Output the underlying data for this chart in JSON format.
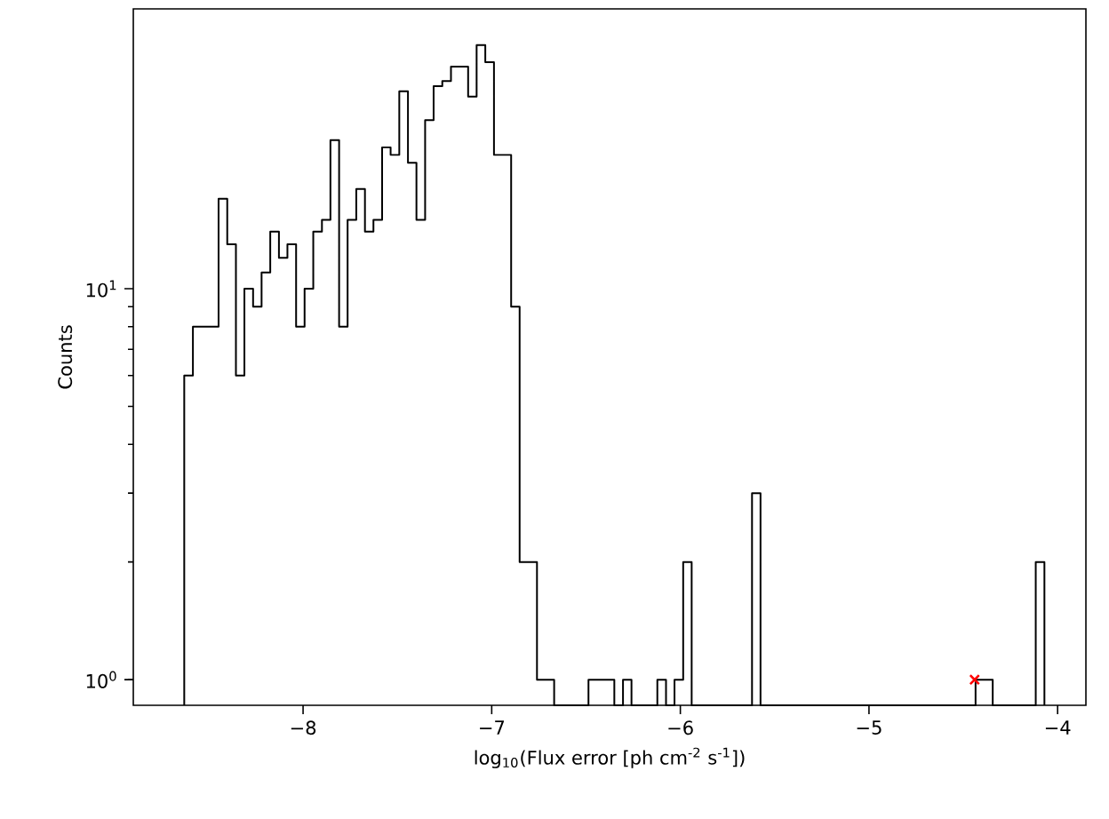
{
  "chart_data": {
    "type": "histogram",
    "xlabel": "log$_{10}$(Flux error [ph cm$^{-2}$ s$^{-1}$])",
    "ylabel": "Counts",
    "log": "y",
    "color": "#000000",
    "bins": [
      -8.63,
      -8.584,
      -8.539,
      -8.493,
      -8.448,
      -8.402,
      -8.356,
      -8.311,
      -8.265,
      -8.22,
      -8.174,
      -8.128,
      -8.083,
      -8.037,
      -7.992,
      -7.946,
      -7.9,
      -7.855,
      -7.809,
      -7.764,
      -7.718,
      -7.672,
      -7.627,
      -7.581,
      -7.536,
      -7.49,
      -7.444,
      -7.399,
      -7.353,
      -7.308,
      -7.262,
      -7.216,
      -7.171,
      -7.125,
      -7.08,
      -7.034,
      -6.988,
      -6.943,
      -6.897,
      -6.852,
      -6.806,
      -6.76,
      -6.715,
      -6.669,
      -6.624,
      -6.578,
      -6.532,
      -6.487,
      -6.441,
      -6.396,
      -6.35,
      -6.304,
      -6.259,
      -6.213,
      -6.168,
      -6.122,
      -6.076,
      -6.031,
      -5.985,
      -5.94,
      -5.894,
      -5.848,
      -5.803,
      -5.757,
      -5.712,
      -5.666,
      -5.62,
      -5.575,
      -5.529,
      -5.484,
      -5.438,
      -5.392,
      -5.347,
      -5.301,
      -5.256,
      -5.21,
      -5.164,
      -5.119,
      -5.073,
      -5.028,
      -4.982,
      -4.936,
      -4.891,
      -4.845,
      -4.8,
      -4.754,
      -4.708,
      -4.663,
      -4.617,
      -4.572,
      -4.526,
      -4.48,
      -4.435,
      -4.389,
      -4.344,
      -4.298,
      -4.252,
      -4.207,
      -4.161,
      -4.116,
      -4.07
    ],
    "values": [
      6,
      8,
      8,
      8,
      17,
      13,
      6,
      10,
      9,
      11,
      14,
      12,
      13,
      8,
      10,
      14,
      15,
      24,
      8,
      15,
      18,
      14,
      15,
      23,
      22,
      32,
      21,
      15,
      27,
      33,
      34,
      37,
      37,
      31,
      42,
      38,
      22,
      22,
      9,
      2,
      2,
      1,
      1,
      null,
      null,
      null,
      null,
      1,
      1,
      1,
      null,
      1,
      null,
      null,
      null,
      1,
      null,
      1,
      2,
      null,
      null,
      null,
      null,
      null,
      null,
      null,
      3,
      null,
      null,
      null,
      null,
      null,
      null,
      null,
      null,
      null,
      null,
      null,
      null,
      null,
      null,
      null,
      null,
      null,
      null,
      null,
      null,
      null,
      null,
      null,
      null,
      null,
      1,
      1,
      null,
      null,
      null,
      null,
      null,
      2
    ],
    "series": [
      {
        "type": "scatter",
        "x": [
          -4.44
        ],
        "values": [
          1
        ],
        "color": "#ff0000",
        "marker": "cross"
      }
    ],
    "xlim": [
      -8.9,
      -3.85
    ],
    "ylim": [
      0.86,
      52
    ],
    "xticks": [
      {
        "value": -8,
        "label": "−8"
      },
      {
        "value": -7,
        "label": "−7"
      },
      {
        "value": -6,
        "label": "−6"
      },
      {
        "value": -5,
        "label": "−5"
      },
      {
        "value": -4,
        "label": "−4"
      }
    ],
    "yticks": [
      {
        "value": 1,
        "label": "10$^{0}$"
      },
      {
        "value": 10,
        "label": "10$^{1}$"
      }
    ]
  }
}
